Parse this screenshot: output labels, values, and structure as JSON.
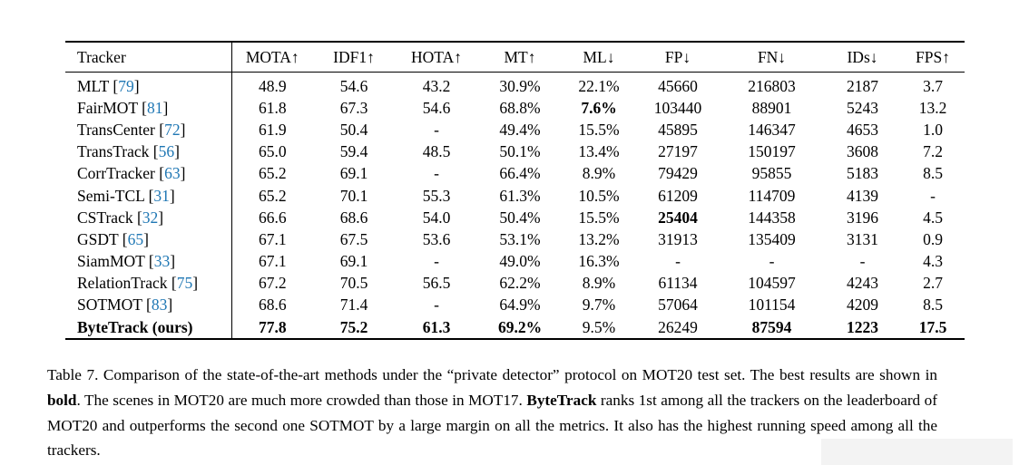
{
  "page": {
    "background": "#ffffff",
    "link_color": "#1f77b4",
    "artifact_color": "#f3f3f3"
  },
  "table": {
    "headers": [
      "Tracker",
      "MOTA↑",
      "IDF1↑",
      "HOTA↑",
      "MT↑",
      "ML↓",
      "FP↓",
      "FN↓",
      "IDs↓",
      "FPS↑"
    ],
    "rows": [
      {
        "tracker": "MLT",
        "ref": "79",
        "bold_name": false,
        "values": [
          "48.9",
          "54.6",
          "43.2",
          "30.9%",
          "22.1%",
          "45660",
          "216803",
          "2187",
          "3.7"
        ],
        "bold": []
      },
      {
        "tracker": "FairMOT",
        "ref": "81",
        "bold_name": false,
        "values": [
          "61.8",
          "67.3",
          "54.6",
          "68.8%",
          "7.6%",
          "103440",
          "88901",
          "5243",
          "13.2"
        ],
        "bold": [
          4
        ]
      },
      {
        "tracker": "TransCenter",
        "ref": "72",
        "bold_name": false,
        "values": [
          "61.9",
          "50.4",
          "-",
          "49.4%",
          "15.5%",
          "45895",
          "146347",
          "4653",
          "1.0"
        ],
        "bold": []
      },
      {
        "tracker": "TransTrack",
        "ref": "56",
        "bold_name": false,
        "values": [
          "65.0",
          "59.4",
          "48.5",
          "50.1%",
          "13.4%",
          "27197",
          "150197",
          "3608",
          "7.2"
        ],
        "bold": []
      },
      {
        "tracker": "CorrTracker",
        "ref": "63",
        "bold_name": false,
        "values": [
          "65.2",
          "69.1",
          "-",
          "66.4%",
          "8.9%",
          "79429",
          "95855",
          "5183",
          "8.5"
        ],
        "bold": []
      },
      {
        "tracker": "Semi-TCL",
        "ref": "31",
        "bold_name": false,
        "values": [
          "65.2",
          "70.1",
          "55.3",
          "61.3%",
          "10.5%",
          "61209",
          "114709",
          "4139",
          "-"
        ],
        "bold": []
      },
      {
        "tracker": "CSTrack",
        "ref": "32",
        "bold_name": false,
        "values": [
          "66.6",
          "68.6",
          "54.0",
          "50.4%",
          "15.5%",
          "25404",
          "144358",
          "3196",
          "4.5"
        ],
        "bold": [
          5
        ]
      },
      {
        "tracker": "GSDT",
        "ref": "65",
        "bold_name": false,
        "values": [
          "67.1",
          "67.5",
          "53.6",
          "53.1%",
          "13.2%",
          "31913",
          "135409",
          "3131",
          "0.9"
        ],
        "bold": []
      },
      {
        "tracker": "SiamMOT",
        "ref": "33",
        "bold_name": false,
        "values": [
          "67.1",
          "69.1",
          "-",
          "49.0%",
          "16.3%",
          "-",
          "-",
          "-",
          "4.3"
        ],
        "bold": []
      },
      {
        "tracker": "RelationTrack",
        "ref": "75",
        "bold_name": false,
        "values": [
          "67.2",
          "70.5",
          "56.5",
          "62.2%",
          "8.9%",
          "61134",
          "104597",
          "4243",
          "2.7"
        ],
        "bold": []
      },
      {
        "tracker": "SOTMOT",
        "ref": "83",
        "bold_name": false,
        "values": [
          "68.6",
          "71.4",
          "-",
          "64.9%",
          "9.7%",
          "57064",
          "101154",
          "4209",
          "8.5"
        ],
        "bold": []
      },
      {
        "tracker": "ByteTrack (ours)",
        "ref": null,
        "bold_name": true,
        "values": [
          "77.8",
          "75.2",
          "61.3",
          "69.2%",
          "9.5%",
          "26249",
          "87594",
          "1223",
          "17.5"
        ],
        "bold": [
          0,
          1,
          2,
          3,
          6,
          7,
          8
        ]
      }
    ]
  },
  "caption": {
    "segments": [
      {
        "text": "Table 7. Comparison of the state-of-the-art methods under the “private detector” protocol on MOT20 test set. The best results are shown in ",
        "bold": false
      },
      {
        "text": "bold",
        "bold": true
      },
      {
        "text": ". The scenes in MOT20 are much more crowded than those in MOT17. ",
        "bold": false
      },
      {
        "text": "ByteTrack",
        "bold": true
      },
      {
        "text": " ranks 1st among all the trackers on the leaderboard of MOT20 and outperforms the second one SOTMOT by a large margin on all the metrics. It also has the highest running speed among all the trackers.",
        "bold": false
      }
    ]
  }
}
